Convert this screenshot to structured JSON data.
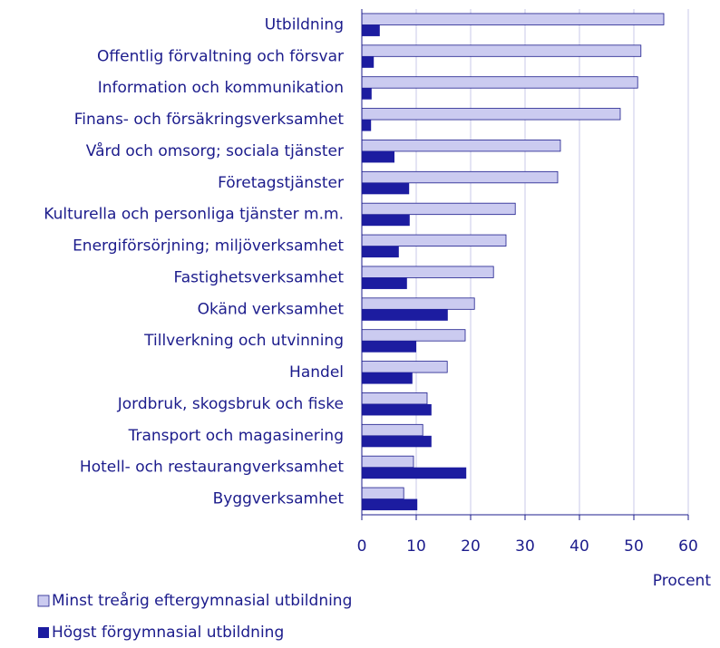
{
  "chart_data": {
    "type": "hbar",
    "categories": [
      "Utbildning",
      "Offentlig förvaltning och försvar",
      "Information och kommunikation",
      "Finans- och försäkringsverksamhet",
      "Vård och omsorg; sociala tjänster",
      "Företagstjänster",
      "Kulturella och personliga tjänster m.m.",
      "Energiförsörjning; miljöverksamhet",
      "Fastighetsverksamhet",
      "Okänd verksamhet",
      "Tillverkning och utvinning",
      "Handel",
      "Jordbruk, skogsbruk och fiske",
      "Transport och magasinering",
      "Hotell- och restaurangverksamhet",
      "Byggverksamhet"
    ],
    "series": [
      {
        "name": "Minst treårig eftergymnasial utbildning",
        "color": "#cbcbf0",
        "values": [
          55.5,
          51.3,
          50.7,
          47.5,
          36.5,
          36,
          28.2,
          26.5,
          24.2,
          20.7,
          19,
          15.7,
          12,
          11.2,
          9.5,
          7.7
        ]
      },
      {
        "name": "Högst förgymnasial utbildning",
        "color": "#1c1ca0",
        "values": [
          3.3,
          2.2,
          1.8,
          1.7,
          6,
          8.7,
          8.8,
          6.8,
          8.3,
          15.8,
          10,
          9.3,
          12.8,
          12.8,
          19.2,
          10.2
        ]
      }
    ],
    "x_label": "Procent",
    "xlim": [
      0,
      60
    ],
    "xticks": [
      0,
      10,
      20,
      30,
      40,
      50,
      60
    ],
    "grid": true
  }
}
